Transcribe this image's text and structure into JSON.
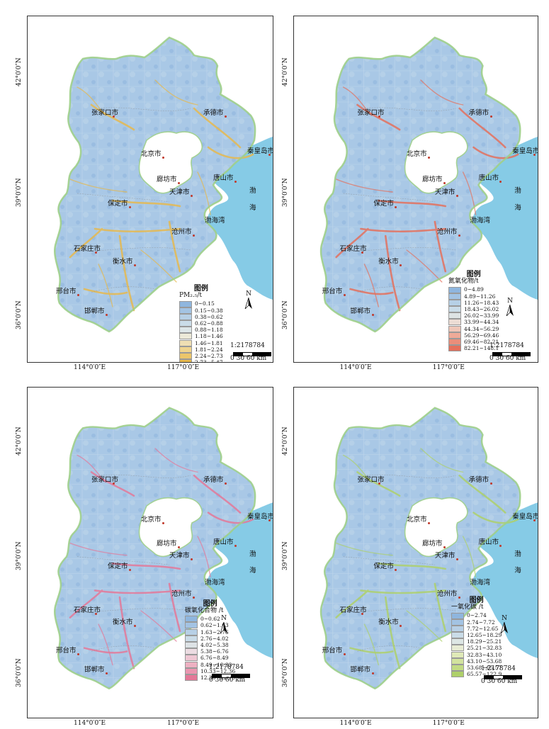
{
  "axis": {
    "lat_42": "42°0′0″N",
    "lat_39": "39°0′0″N",
    "lat_36": "36°0′0″N",
    "lon_114": "114°0′0″E",
    "lon_117": "117°0′0″E"
  },
  "cities": {
    "zhangjiakou": "张家口市",
    "chengde": "承德市",
    "beijing": "北京市",
    "qinhuangdao": "秦皇岛市",
    "langfang": "廊坊市",
    "tangshan": "唐山市",
    "tianjin": "天津市",
    "baoding": "保定市",
    "cangzhou": "沧州市",
    "shijiazhuang": "石家庄市",
    "hengshui": "衡水市",
    "xingtai": "邢台市",
    "handan": "邯郸市"
  },
  "seas": {
    "bo": "渤",
    "hai": "海",
    "bohai_bay": "渤海湾"
  },
  "north_label": "N",
  "scale": {
    "ratio": "1:2178784",
    "units": "0  30 60 km"
  },
  "legends": [
    {
      "title": "图例",
      "unit": "PM₂.₅/t",
      "classes": [
        "0~0.15",
        "0.15~0.38",
        "0.38~0.62",
        "0.62~0.88",
        "0.88~1.18",
        "1.18~1.46",
        "1.46~1.81",
        "1.81~2.24",
        "2.24~2.73",
        "2.73~5.47"
      ],
      "colors": [
        "#8fb6de",
        "#a3c3e3",
        "#b7d0e6",
        "#cadce8",
        "#dde6e8",
        "#ece9d8",
        "#efdfb3",
        "#efd48e",
        "#ecc66b",
        "#e6b84d"
      ]
    },
    {
      "title": "图例",
      "unit": "氮氧化物/t",
      "classes": [
        "0~4.89",
        "4.89~11.26",
        "11.26~18.43",
        "18.43~26.02",
        "26.02~33.99",
        "33.99~44.34",
        "44.34~56.29",
        "56.29~69.46",
        "69.46~82.21",
        "82.21~148.1"
      ],
      "colors": [
        "#8fb6de",
        "#a3c3e3",
        "#b7d0e6",
        "#cadce8",
        "#dde3e4",
        "#ecdcd4",
        "#efc6b8",
        "#eeaa98",
        "#ea8e7a",
        "#e4705c"
      ]
    },
    {
      "title": "图例",
      "unit": "碳氧化合物 /t",
      "classes": [
        "0~0.62",
        "0.62~1.63",
        "1.63~2.76",
        "2.76~4.02",
        "4.02~5.38",
        "5.38~6.76",
        "6.76~8.49",
        "8.49~10.33",
        "10.33~12.36",
        "12.36~22.15"
      ],
      "colors": [
        "#8fb6de",
        "#a3c3e3",
        "#b7d0e6",
        "#cadce8",
        "#dde3e6",
        "#ecdce2",
        "#efc8d4",
        "#eeb0c2",
        "#ea96b0",
        "#e47898"
      ]
    },
    {
      "title": "图例",
      "unit": "一氧化碳 /t",
      "classes": [
        "0~2.74",
        "2.74~7.72",
        "7.72~12.65",
        "12.65~18.29",
        "18.29~25.21",
        "25.21~32.83",
        "32.83~43.10",
        "43.10~53.68",
        "53.68~65.57",
        "65.57~122.9"
      ],
      "colors": [
        "#8fb6de",
        "#a3c3e3",
        "#b7d0e6",
        "#cadce8",
        "#dde6e4",
        "#e8ecd4",
        "#e0eab8",
        "#d2e39e",
        "#c2db84",
        "#aed06a"
      ]
    }
  ],
  "map_colors": {
    "land": "#a9c8e6",
    "sea": "#86cbe6",
    "border": "#9ecf8a",
    "hot1": "#e6b84d",
    "hot2": "#e4705c",
    "hot3": "#e47898",
    "hot4": "#aed06a"
  }
}
